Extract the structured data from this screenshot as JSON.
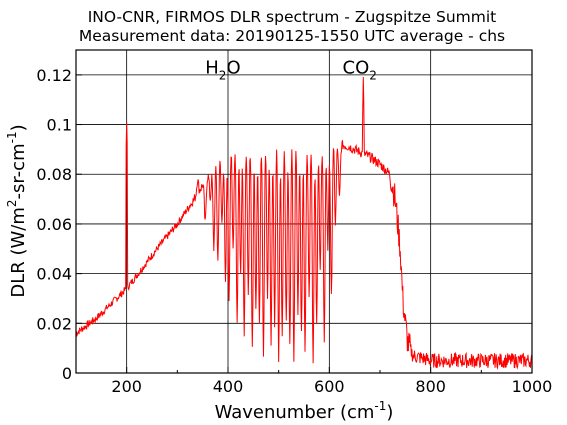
{
  "chart_data": {
    "type": "line",
    "title_lines": [
      "INO-CNR, FIRMOS DLR spectrum - Zugspitze Summit",
      "Measurement data: 20190125-1550 UTC average - chs"
    ],
    "xlabel": {
      "prefix": "Wavenumber (cm",
      "sup": "-1",
      "suffix": ")"
    },
    "ylabel": {
      "prefix": "DLR (W/m",
      "sup1": "2",
      "mid": "-sr-cm",
      "sup2": "-1",
      "suffix": ")"
    },
    "xlim": [
      100,
      1000
    ],
    "ylim": [
      0,
      0.13
    ],
    "xticks": [
      200,
      400,
      600,
      800,
      1000
    ],
    "yticks": [
      0,
      0.02,
      0.04,
      0.06,
      0.08,
      0.1,
      0.12
    ],
    "ytick_labels": [
      "0",
      "0.02",
      "0.04",
      "0.06",
      "0.08",
      "0.1",
      "0.12"
    ],
    "grid": true,
    "line_color": "#ff0000",
    "annotations": [
      {
        "base": "H",
        "sub": "2",
        "tail": "O",
        "x": 390,
        "y": 0.1205
      },
      {
        "base": "CO",
        "sub": "2",
        "tail": "",
        "x": 660,
        "y": 0.1205
      }
    ],
    "series": [
      {
        "envelope": [
          [
            100,
            0.016
          ],
          [
            140,
            0.022
          ],
          [
            180,
            0.03
          ],
          [
            200,
            0.034
          ],
          [
            230,
            0.042
          ],
          [
            260,
            0.05
          ],
          [
            300,
            0.06
          ],
          [
            330,
            0.069
          ],
          [
            360,
            0.079
          ],
          [
            380,
            0.086
          ],
          [
            400,
            0.091
          ],
          [
            420,
            0.094
          ],
          [
            450,
            0.095
          ],
          [
            500,
            0.096
          ],
          [
            550,
            0.096
          ],
          [
            600,
            0.094
          ],
          [
            620,
            0.092
          ],
          [
            640,
            0.091
          ],
          [
            660,
            0.089
          ],
          [
            680,
            0.087
          ],
          [
            700,
            0.084
          ],
          [
            720,
            0.08
          ],
          [
            730,
            0.07
          ],
          [
            740,
            0.05
          ],
          [
            745,
            0.03
          ],
          [
            750,
            0.02
          ],
          [
            755,
            0.012
          ],
          [
            765,
            0.007
          ],
          [
            800,
            0.005
          ],
          [
            850,
            0.005
          ],
          [
            900,
            0.005
          ],
          [
            950,
            0.005
          ],
          [
            1000,
            0.005
          ]
        ],
        "absorption_lines": [
          [
            340,
            0.078
          ],
          [
            355,
            0.06
          ],
          [
            365,
            0.07
          ],
          [
            372,
            0.05
          ],
          [
            380,
            0.045
          ],
          [
            388,
            0.06
          ],
          [
            395,
            0.035
          ],
          [
            402,
            0.03
          ],
          [
            410,
            0.05
          ],
          [
            418,
            0.02
          ],
          [
            425,
            0.04
          ],
          [
            432,
            0.015
          ],
          [
            440,
            0.03
          ],
          [
            448,
            0.01
          ],
          [
            455,
            0.025
          ],
          [
            462,
            0.02
          ],
          [
            470,
            0.008
          ],
          [
            478,
            0.03
          ],
          [
            485,
            0.012
          ],
          [
            492,
            0.02
          ],
          [
            500,
            0.006
          ],
          [
            507,
            0.015
          ],
          [
            515,
            0.02
          ],
          [
            522,
            0.01
          ],
          [
            530,
            0.005
          ],
          [
            538,
            0.025
          ],
          [
            545,
            0.015
          ],
          [
            552,
            0.008
          ],
          [
            560,
            0.03
          ],
          [
            568,
            0.005
          ],
          [
            575,
            0.02
          ],
          [
            582,
            0.04
          ],
          [
            590,
            0.012
          ],
          [
            597,
            0.05
          ],
          [
            604,
            0.03
          ],
          [
            612,
            0.06
          ],
          [
            620,
            0.07
          ]
        ],
        "spikes": [
          [
            200,
            0.102
          ],
          [
            667,
            0.118
          ]
        ]
      }
    ]
  }
}
